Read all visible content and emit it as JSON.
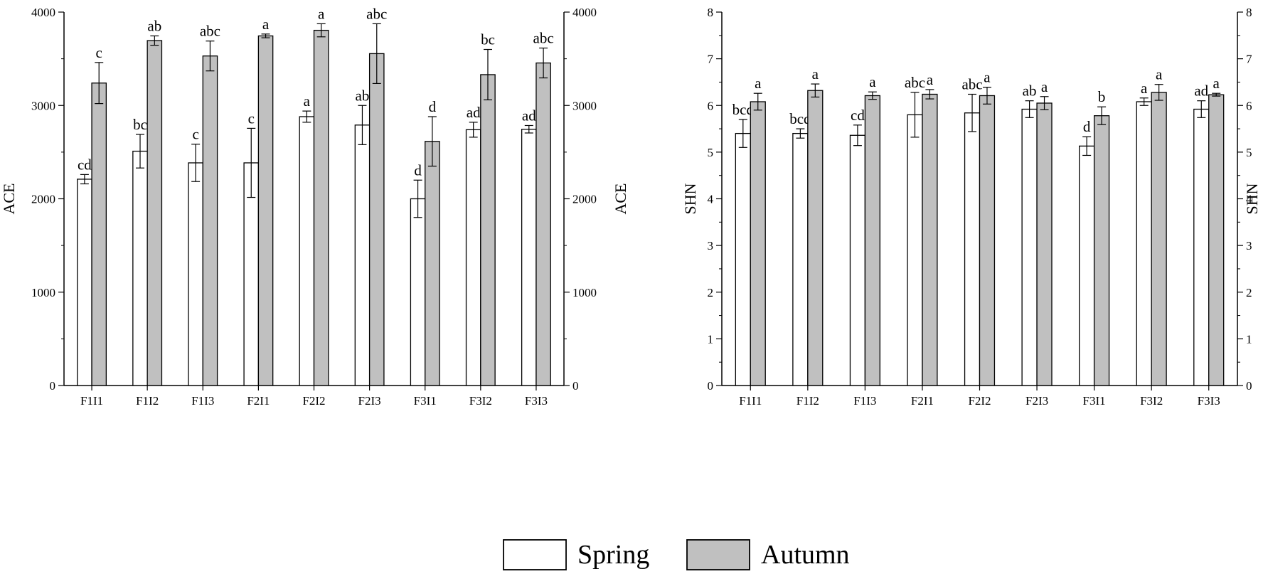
{
  "colors": {
    "spring": "#ffffff",
    "autumn": "#c0c0c0",
    "stroke": "#000000"
  },
  "legend": {
    "items": [
      {
        "name": "Spring"
      },
      {
        "name": "Autumn"
      }
    ]
  },
  "chart_data": [
    {
      "type": "bar",
      "categories": [
        "F1I1",
        "F1I2",
        "F1I3",
        "F2I1",
        "F2I2",
        "F2I3",
        "F3I1",
        "F3I2",
        "F3I3"
      ],
      "ylabel": "ACE",
      "ylabel_right": "ACE",
      "ylim": [
        0,
        4000
      ],
      "yticks": [
        0,
        1000,
        2000,
        3000,
        4000
      ],
      "grid": false,
      "legend_position": "bottom-center",
      "series": [
        {
          "name": "Spring",
          "values": [
            2210,
            2510,
            2385,
            2385,
            2880,
            2790,
            2000,
            2740,
            2745
          ],
          "errors": [
            50,
            180,
            200,
            370,
            60,
            210,
            200,
            80,
            40
          ],
          "labels": [
            "cd",
            "bc",
            "c",
            "c",
            "a",
            "ab",
            "d",
            "ad",
            "ad"
          ]
        },
        {
          "name": "Autumn",
          "values": [
            3240,
            3695,
            3530,
            3745,
            3805,
            3555,
            2615,
            3330,
            3455
          ],
          "errors": [
            220,
            50,
            160,
            20,
            70,
            320,
            265,
            270,
            160
          ],
          "labels": [
            "c",
            "ab",
            "abc",
            "a",
            "a",
            "abc",
            "d",
            "bc",
            "abc"
          ]
        }
      ]
    },
    {
      "type": "bar",
      "categories": [
        "F1I1",
        "F1I2",
        "F1I3",
        "F2I1",
        "F2I2",
        "F2I3",
        "F3I1",
        "F3I2",
        "F3I3"
      ],
      "ylabel": "SHN",
      "ylabel_right": "SHN",
      "ylim": [
        0,
        8
      ],
      "yticks": [
        0,
        1,
        2,
        3,
        4,
        5,
        6,
        7,
        8
      ],
      "grid": false,
      "legend_position": "bottom-center",
      "series": [
        {
          "name": "Spring",
          "values": [
            5.4,
            5.4,
            5.36,
            5.8,
            5.84,
            5.92,
            5.13,
            6.08,
            5.92
          ],
          "errors": [
            0.3,
            0.1,
            0.22,
            0.48,
            0.4,
            0.18,
            0.2,
            0.08,
            0.18
          ],
          "labels": [
            "bcd",
            "bcd",
            "cd",
            "abc",
            "abc",
            "ab",
            "d",
            "a",
            "ad"
          ]
        },
        {
          "name": "Autumn",
          "values": [
            6.08,
            6.32,
            6.21,
            6.24,
            6.21,
            6.05,
            5.78,
            6.28,
            6.23
          ],
          "errors": [
            0.18,
            0.14,
            0.08,
            0.1,
            0.18,
            0.14,
            0.19,
            0.17,
            0.03
          ],
          "labels": [
            "a",
            "a",
            "a",
            "a",
            "a",
            "a",
            "b",
            "a",
            "a"
          ]
        }
      ]
    }
  ]
}
